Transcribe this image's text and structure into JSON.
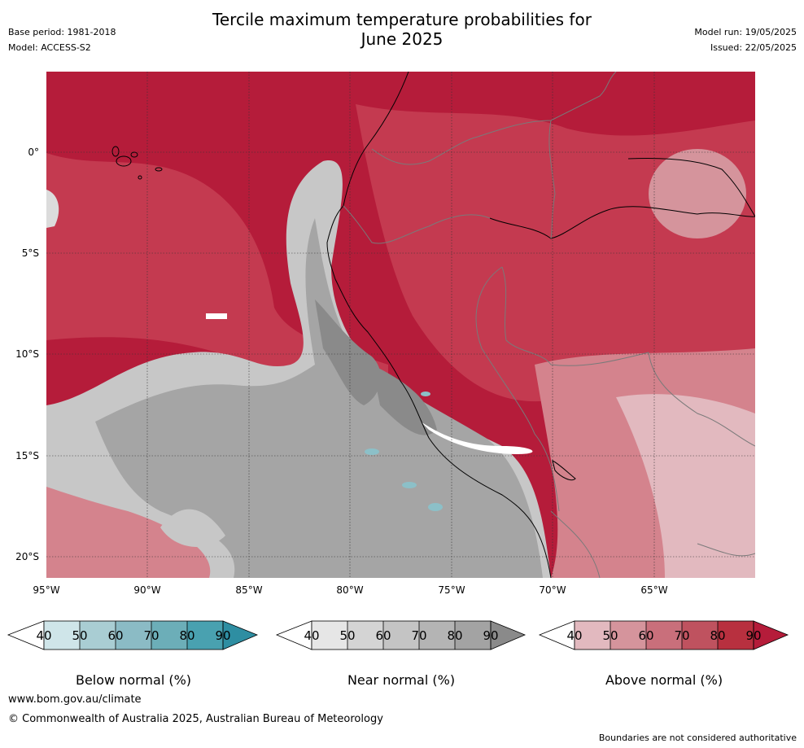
{
  "header": {
    "title_line1": "Tercile maximum temperature probabilities for",
    "title_line2": "June 2025",
    "base_period": "Base period: 1981-2018",
    "model": "Model: ACCESS-S2",
    "model_run": "Model run: 19/05/2025",
    "issued": "Issued: 22/05/2025"
  },
  "map": {
    "lat_labels": [
      "0°",
      "5°S",
      "10°S",
      "15°S",
      "20°S"
    ],
    "lon_labels": [
      "95°W",
      "90°W",
      "85°W",
      "80°W",
      "75°W",
      "70°W",
      "65°W"
    ],
    "colors": {
      "ocean_high_red": "#b51c3a",
      "red_mid": "#c43a50",
      "red_light": "#d4838d",
      "pink": "#e2b9bf",
      "grey_dark": "#8a8a8a",
      "grey_mid": "#a5a5a5",
      "grey_light": "#c7c7c7",
      "grey_pale": "#dcdcdc",
      "teal": "#8cc0c8"
    }
  },
  "legends": [
    {
      "title": "Below normal (%)",
      "ticks": [
        "40",
        "50",
        "60",
        "70",
        "80",
        "90"
      ],
      "colors": [
        "#cfe5e9",
        "#a9cdd3",
        "#8bbbc5",
        "#6caeb8",
        "#49a1b0",
        "#2e8ea2"
      ]
    },
    {
      "title": "Near normal (%)",
      "ticks": [
        "40",
        "50",
        "60",
        "70",
        "80",
        "90"
      ],
      "colors": [
        "#e6e6e6",
        "#d4d4d4",
        "#c4c4c4",
        "#b4b4b4",
        "#a3a3a3",
        "#8a8a8a"
      ]
    },
    {
      "title": "Above normal (%)",
      "ticks": [
        "40",
        "50",
        "60",
        "70",
        "80",
        "90"
      ],
      "colors": [
        "#e2b9bf",
        "#d5949c",
        "#c96f7b",
        "#bf525f",
        "#b8303f",
        "#b51c3a"
      ]
    }
  ],
  "footer": {
    "url": "www.bom.gov.au/climate",
    "copyright": "© Commonwealth of Australia 2025, Australian Bureau of Meteorology",
    "disclaimer": "Boundaries are not considered authoritative"
  }
}
